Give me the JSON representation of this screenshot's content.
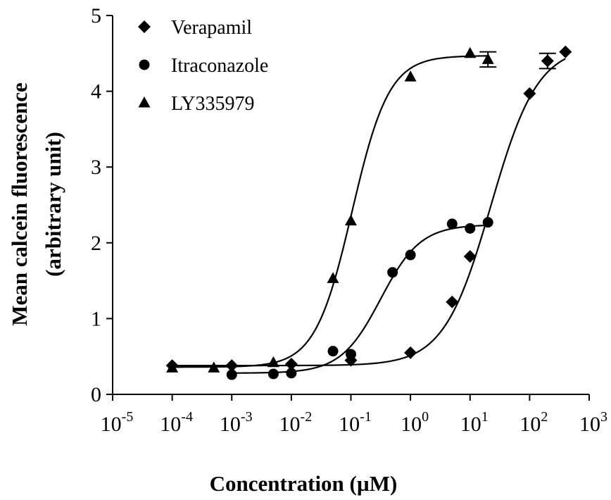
{
  "chart_data": {
    "type": "scatter",
    "xlabel": "Concentration (µM)",
    "ylabel": [
      "Mean calcein fluorescence",
      "(arbitrary unit)"
    ],
    "log_x": true,
    "xlim": [
      1e-05,
      1000
    ],
    "xticks": [
      {
        "value": 1e-05,
        "label": "10",
        "exponent": "-5"
      },
      {
        "value": 0.0001,
        "label": "10",
        "exponent": "-4"
      },
      {
        "value": 0.001,
        "label": "10",
        "exponent": "-3"
      },
      {
        "value": 0.01,
        "label": "10",
        "exponent": "-2"
      },
      {
        "value": 0.1,
        "label": "10",
        "exponent": "-1"
      },
      {
        "value": 1,
        "label": "10",
        "exponent": "0"
      },
      {
        "value": 10,
        "label": "10",
        "exponent": "1"
      },
      {
        "value": 100,
        "label": "10",
        "exponent": "2"
      },
      {
        "value": 1000,
        "label": "10",
        "exponent": "3"
      }
    ],
    "ylim": [
      0,
      5
    ],
    "yticks": [
      0,
      1,
      2,
      3,
      4,
      5
    ],
    "legend": "top-left",
    "series": [
      {
        "name": "Verapamil",
        "color": "#000000",
        "marker": "diamond",
        "x": [
          0.0001,
          0.001,
          0.01,
          0.1,
          1,
          5,
          10,
          100,
          200,
          400
        ],
        "values": [
          0.38,
          0.38,
          0.4,
          0.45,
          0.55,
          1.22,
          1.82,
          3.97,
          4.4,
          4.52
        ],
        "errors": [
          null,
          null,
          null,
          null,
          null,
          null,
          null,
          null,
          0.1,
          null
        ],
        "fit": {
          "bottom": 0.38,
          "top": 4.6,
          "log_ec50": 1.35,
          "hill": 1.1
        }
      },
      {
        "name": "Itraconazole",
        "color": "#000000",
        "marker": "circle",
        "x": [
          0.001,
          0.005,
          0.01,
          0.05,
          0.1,
          0.5,
          1,
          5,
          10,
          20
        ],
        "values": [
          0.26,
          0.27,
          0.28,
          0.57,
          0.53,
          1.61,
          1.84,
          2.25,
          2.19,
          2.27
        ],
        "errors": [
          null,
          null,
          null,
          null,
          null,
          null,
          null,
          null,
          null,
          null
        ],
        "fit": {
          "bottom": 0.28,
          "top": 2.24,
          "log_ec50": -0.5,
          "hill": 1.3
        }
      },
      {
        "name": "LY335979",
        "color": "#000000",
        "marker": "triangle",
        "x": [
          0.0001,
          0.0005,
          0.005,
          0.05,
          0.1,
          1,
          10,
          20
        ],
        "values": [
          0.35,
          0.35,
          0.42,
          1.53,
          2.29,
          4.19,
          4.5,
          4.42
        ],
        "errors": [
          null,
          null,
          null,
          null,
          null,
          null,
          null,
          0.1
        ],
        "fit": {
          "bottom": 0.36,
          "top": 4.47,
          "log_ec50": -0.98,
          "hill": 1.4
        }
      }
    ]
  }
}
